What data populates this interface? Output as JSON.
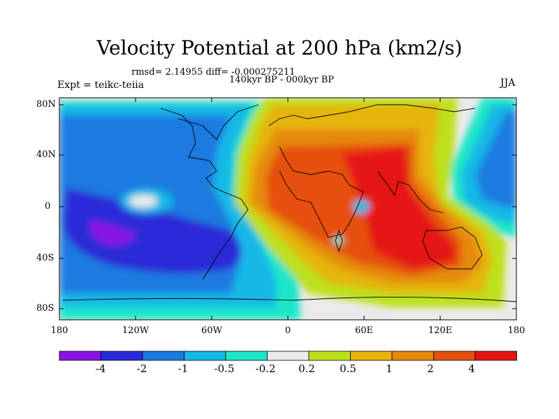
{
  "title": "Velocity Potential at 200 hPa (km2/s)",
  "stats": "rmsd= 2.14955 diff= -0.000275211",
  "period": "140kyr BP - 000kyr BP",
  "experiment": "Expt = teikc-teiia",
  "season": "JJA",
  "lat_labels": [
    "80N",
    "40N",
    "0",
    "40S",
    "80S"
  ],
  "lon_labels": [
    "180",
    "120W",
    "60W",
    "0",
    "60E",
    "120E",
    "180"
  ],
  "colorbar": {
    "labels": [
      "-4",
      "-2",
      "-1",
      "-0.5",
      "-0.2",
      "0.2",
      "0.5",
      "1",
      "2",
      "4"
    ],
    "colors": [
      "#8a14e6",
      "#2a2ad8",
      "#1a7ae0",
      "#12b8e6",
      "#1ee6c8",
      "#ebebeb",
      "#bde01a",
      "#e6b40a",
      "#e68a0a",
      "#e6500f",
      "#e61414"
    ]
  },
  "chart_data": {
    "type": "map",
    "field": "velocity potential difference at 200 hPa",
    "units": "km2/s",
    "lat_range": [
      -90,
      90
    ],
    "lon_range": [
      -180,
      180
    ],
    "contour_levels": [
      -4,
      -2,
      -1,
      -0.5,
      -0.2,
      0.2,
      0.5,
      1,
      2,
      4
    ],
    "features": [
      {
        "region": "Pacific / Americas",
        "sign": "negative",
        "min_level": -4
      },
      {
        "region": "Africa / Indian Ocean / Australia",
        "sign": "positive",
        "max_level": 4
      }
    ]
  }
}
